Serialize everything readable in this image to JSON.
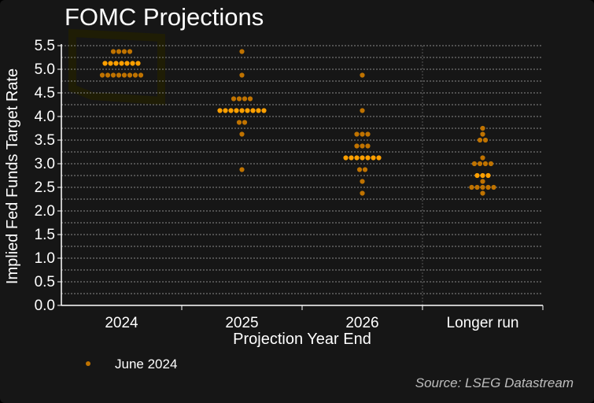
{
  "chart_data": {
    "type": "scatter",
    "title": "FOMC Projections",
    "xlabel": "Projection Year End",
    "ylabel": "Implied Fed Funds Target Rate",
    "ylim": [
      0,
      5.5
    ],
    "yticks": [
      "0.0",
      "0.5",
      "1.0",
      "1.5",
      "2.0",
      "2.5",
      "3.0",
      "3.5",
      "4.0",
      "4.5",
      "5.0",
      "5.5"
    ],
    "grid": true,
    "categories": [
      "2024",
      "2025",
      "2026",
      "Longer run"
    ],
    "legend": {
      "placement": "bottom-left",
      "entries": [
        "June 2024"
      ]
    },
    "source": "Source: LSEG Datastream",
    "colors": {
      "dot": "#c07300",
      "median": "#ffa000",
      "background": "#161616"
    },
    "series": [
      {
        "name": "June 2024",
        "points": [
          {
            "category": "2024",
            "rates": [
              [
                5.375,
                4
              ],
              [
                5.125,
                7
              ],
              [
                4.875,
                8
              ]
            ],
            "median": 5.125
          },
          {
            "category": "2025",
            "rates": [
              [
                5.375,
                1
              ],
              [
                4.875,
                1
              ],
              [
                4.375,
                4
              ],
              [
                4.125,
                9
              ],
              [
                3.875,
                2
              ],
              [
                3.625,
                1
              ],
              [
                2.875,
                1
              ]
            ],
            "median": 4.125
          },
          {
            "category": "2026",
            "rates": [
              [
                4.875,
                1
              ],
              [
                4.125,
                1
              ],
              [
                3.625,
                3
              ],
              [
                3.375,
                3
              ],
              [
                3.125,
                7
              ],
              [
                2.875,
                2
              ],
              [
                2.625,
                1
              ],
              [
                2.375,
                1
              ]
            ],
            "median": 3.125
          },
          {
            "category": "Longer run",
            "rates": [
              [
                3.75,
                1
              ],
              [
                3.625,
                1
              ],
              [
                3.5,
                2
              ],
              [
                3.125,
                1
              ],
              [
                3.0,
                4
              ],
              [
                2.75,
                3
              ],
              [
                2.625,
                1
              ],
              [
                2.5,
                5
              ],
              [
                2.375,
                1
              ]
            ],
            "median": 2.75
          }
        ]
      }
    ]
  }
}
